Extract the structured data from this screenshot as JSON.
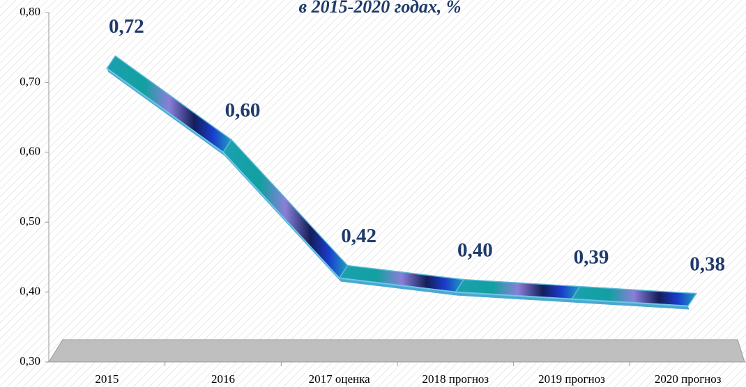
{
  "chart_data": {
    "type": "line",
    "title": "в 2015-2020 годах, %",
    "categories": [
      "2015",
      "2016",
      "2017 оценка",
      "2018 прогноз",
      "2019 прогноз",
      "2020 прогноз"
    ],
    "values": [
      0.72,
      0.6,
      0.42,
      0.4,
      0.39,
      0.38
    ],
    "value_labels": [
      "0,72",
      "0,60",
      "0,42",
      "0,40",
      "0,39",
      "0,38"
    ],
    "color": "#1f3a6a",
    "ylim": [
      0.3,
      0.8
    ],
    "yticks": [
      {
        "value": 0.3,
        "label": "0,30"
      },
      {
        "value": 0.4,
        "label": "0,40"
      },
      {
        "value": 0.5,
        "label": "0,50"
      },
      {
        "value": 0.6,
        "label": "0,60"
      },
      {
        "value": 0.7,
        "label": "0,70"
      },
      {
        "value": 0.8,
        "label": "0,80"
      }
    ]
  }
}
